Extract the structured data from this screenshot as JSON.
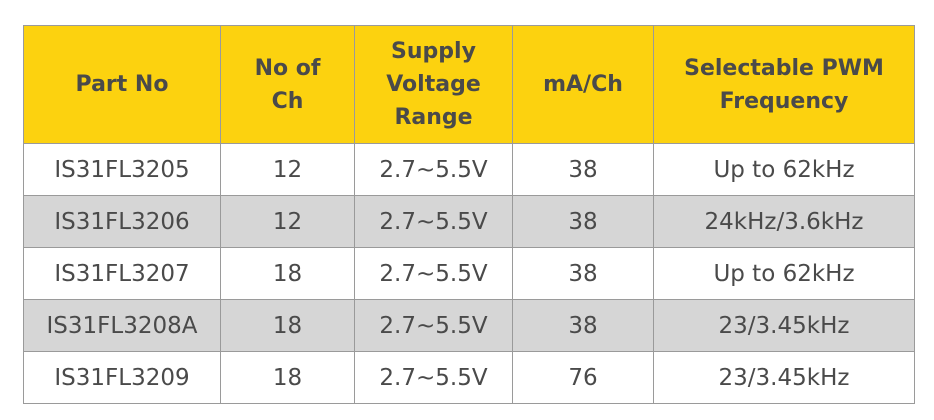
{
  "table": {
    "headers": [
      [
        "Part No"
      ],
      [
        "No of",
        "Ch"
      ],
      [
        "Supply",
        "Voltage",
        "Range"
      ],
      [
        "mA/Ch"
      ],
      [
        "Selectable PWM",
        "Frequency"
      ]
    ],
    "rows": [
      [
        "IS31FL3205",
        "12",
        "2.7~5.5V",
        "38",
        "Up to 62kHz"
      ],
      [
        "IS31FL3206",
        "12",
        "2.7~5.5V",
        "38",
        "24kHz/3.6kHz"
      ],
      [
        "IS31FL3207",
        "18",
        "2.7~5.5V",
        "38",
        "Up to 62kHz"
      ],
      [
        "IS31FL3208A",
        "18",
        "2.7~5.5V",
        "38",
        "23/3.45kHz"
      ],
      [
        "IS31FL3209",
        "18",
        "2.7~5.5V",
        "76",
        "23/3.45kHz"
      ]
    ]
  },
  "colors": {
    "header_bg": "#fcd20f",
    "stripe_bg": "#d6d6d6",
    "text": "#4a4a4a"
  }
}
